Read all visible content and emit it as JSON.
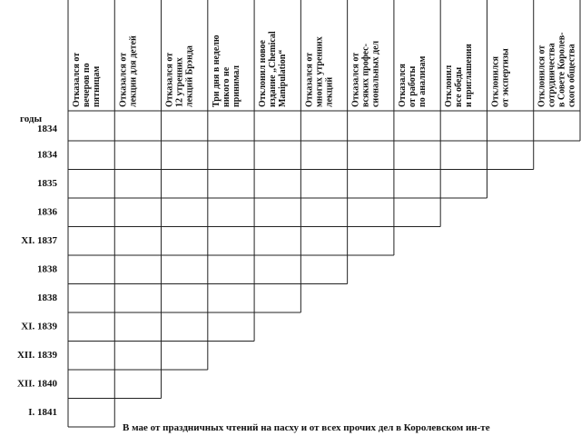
{
  "table": {
    "year_header": "годы",
    "columns": [
      [
        "Отказался от",
        "вечеров по",
        "пятницам"
      ],
      [
        "Отказался от",
        "лекции для детей"
      ],
      [
        "Отказался от",
        "12 утренних",
        "лекций Брэнда"
      ],
      [
        "Три дня в неделю",
        "никого не",
        "принимал"
      ],
      [
        "Отклонил новое",
        "издание „Chemical",
        "Manipulation“"
      ],
      [
        "Отказался от",
        "многих утренних",
        "лекций"
      ],
      [
        "Отказался от",
        "всяких профес-",
        "сиональных дел"
      ],
      [
        "Отказался",
        "от работы",
        "по анализам"
      ],
      [
        "Отклонил",
        "все обеды",
        "и приглашения"
      ],
      [
        "Отклонился",
        "от экспертизы"
      ],
      [
        "Отклонился от",
        "сотрудничества",
        "в Совете Королев-",
        "ского общества"
      ]
    ],
    "years": [
      "1834",
      "1834",
      "1835",
      "1836",
      "XI. 1837",
      "1838",
      "1838",
      "XI. 1839",
      "XII. 1839",
      "XII. 1840",
      "I. 1841"
    ],
    "footnote": "В мае от праздничных чтений на пасху и от всех прочих дел в Королевском ин-те"
  }
}
